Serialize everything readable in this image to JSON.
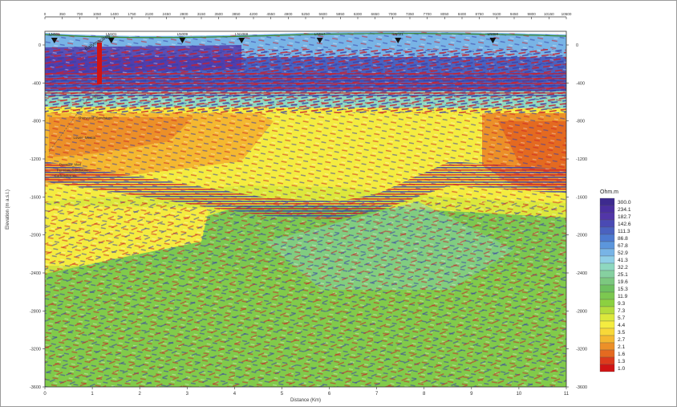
{
  "figure": {
    "top_axis_ticks": [
      "0",
      "350",
      "700",
      "1050",
      "1400",
      "1750",
      "2100",
      "2450",
      "2800",
      "3150",
      "3500",
      "3850",
      "4200",
      "4550",
      "4900",
      "5250",
      "5600",
      "5950",
      "6300",
      "6650",
      "7000",
      "7350",
      "7700",
      "8050",
      "8400",
      "8750",
      "9100",
      "9450",
      "9800",
      "10150",
      "10500"
    ],
    "bottom_axis": {
      "label": "Distance (Km)",
      "ticks": [
        "0",
        "1",
        "2",
        "3",
        "4",
        "5",
        "6",
        "7",
        "8",
        "9",
        "10",
        "11"
      ]
    },
    "left_axis": {
      "label": "Elevation (m a.s.l.)",
      "ticks": [
        "0",
        "-400",
        "-800",
        "-1200",
        "-1600",
        "-2000",
        "-2400",
        "-2800",
        "-3200",
        "-3600"
      ]
    },
    "right_axis": {
      "ticks": [
        "0",
        "-400",
        "-800",
        "-1200",
        "-1600",
        "-2000",
        "-2400",
        "-2800",
        "-3200",
        "-3600"
      ]
    },
    "stations": [
      {
        "label": "LN001",
        "km": 0.2
      },
      {
        "label": "LN101",
        "km": 1.4
      },
      {
        "label": "LN009",
        "km": 2.9
      },
      {
        "label": "LN1066",
        "km": 4.15
      },
      {
        "label": "LN017",
        "km": 5.8
      },
      {
        "label": "LN021",
        "km": 7.45
      },
      {
        "label": "LN090",
        "km": 9.45
      }
    ],
    "well": {
      "label": "Ballymacilroy",
      "km": 1.2,
      "bottom_elevation_m": -420
    },
    "horizons": [
      {
        "label": "Mercia",
        "km": 1.0,
        "elevation_m": -560
      },
      {
        "label": "Sherwood_Sandstone",
        "km": 0.7,
        "elevation_m": -780
      },
      {
        "label": "Lower_Mercia",
        "km": 0.6,
        "elevation_m": -990
      },
      {
        "label": "Permian_Marl",
        "km": 0.3,
        "elevation_m": -1270
      },
      {
        "label": "Permian_Sandstone",
        "km": 0.25,
        "elevation_m": -1330
      },
      {
        "label": "Carboniferous",
        "km": 0.2,
        "elevation_m": -1390
      }
    ],
    "color_scale": {
      "title": "Ohm.m",
      "values": [
        "300.0",
        "234.1",
        "182.7",
        "142.6",
        "111.3",
        "86.8",
        "67.8",
        "52.9",
        "41.3",
        "32.2",
        "25.1",
        "19.6",
        "15.3",
        "11.9",
        "9.3",
        "7.3",
        "5.7",
        "4.4",
        "3.5",
        "2.7",
        "2.1",
        "1.6",
        "1.3",
        "1.0"
      ],
      "colors": [
        "#3d2a8f",
        "#4a2fa0",
        "#5236a8",
        "#4a4ab4",
        "#4a62c0",
        "#4d7ad0",
        "#5c96dc",
        "#78b4e6",
        "#90cfe6",
        "#8ed8c0",
        "#86d0a0",
        "#7cc880",
        "#6ec060",
        "#7cc850",
        "#8cd040",
        "#b4dc3c",
        "#dce83c",
        "#f4ec40",
        "#f8d838",
        "#f4b830",
        "#ec9028",
        "#e46a20",
        "#dc3a1c",
        "#d01414"
      ]
    }
  }
}
